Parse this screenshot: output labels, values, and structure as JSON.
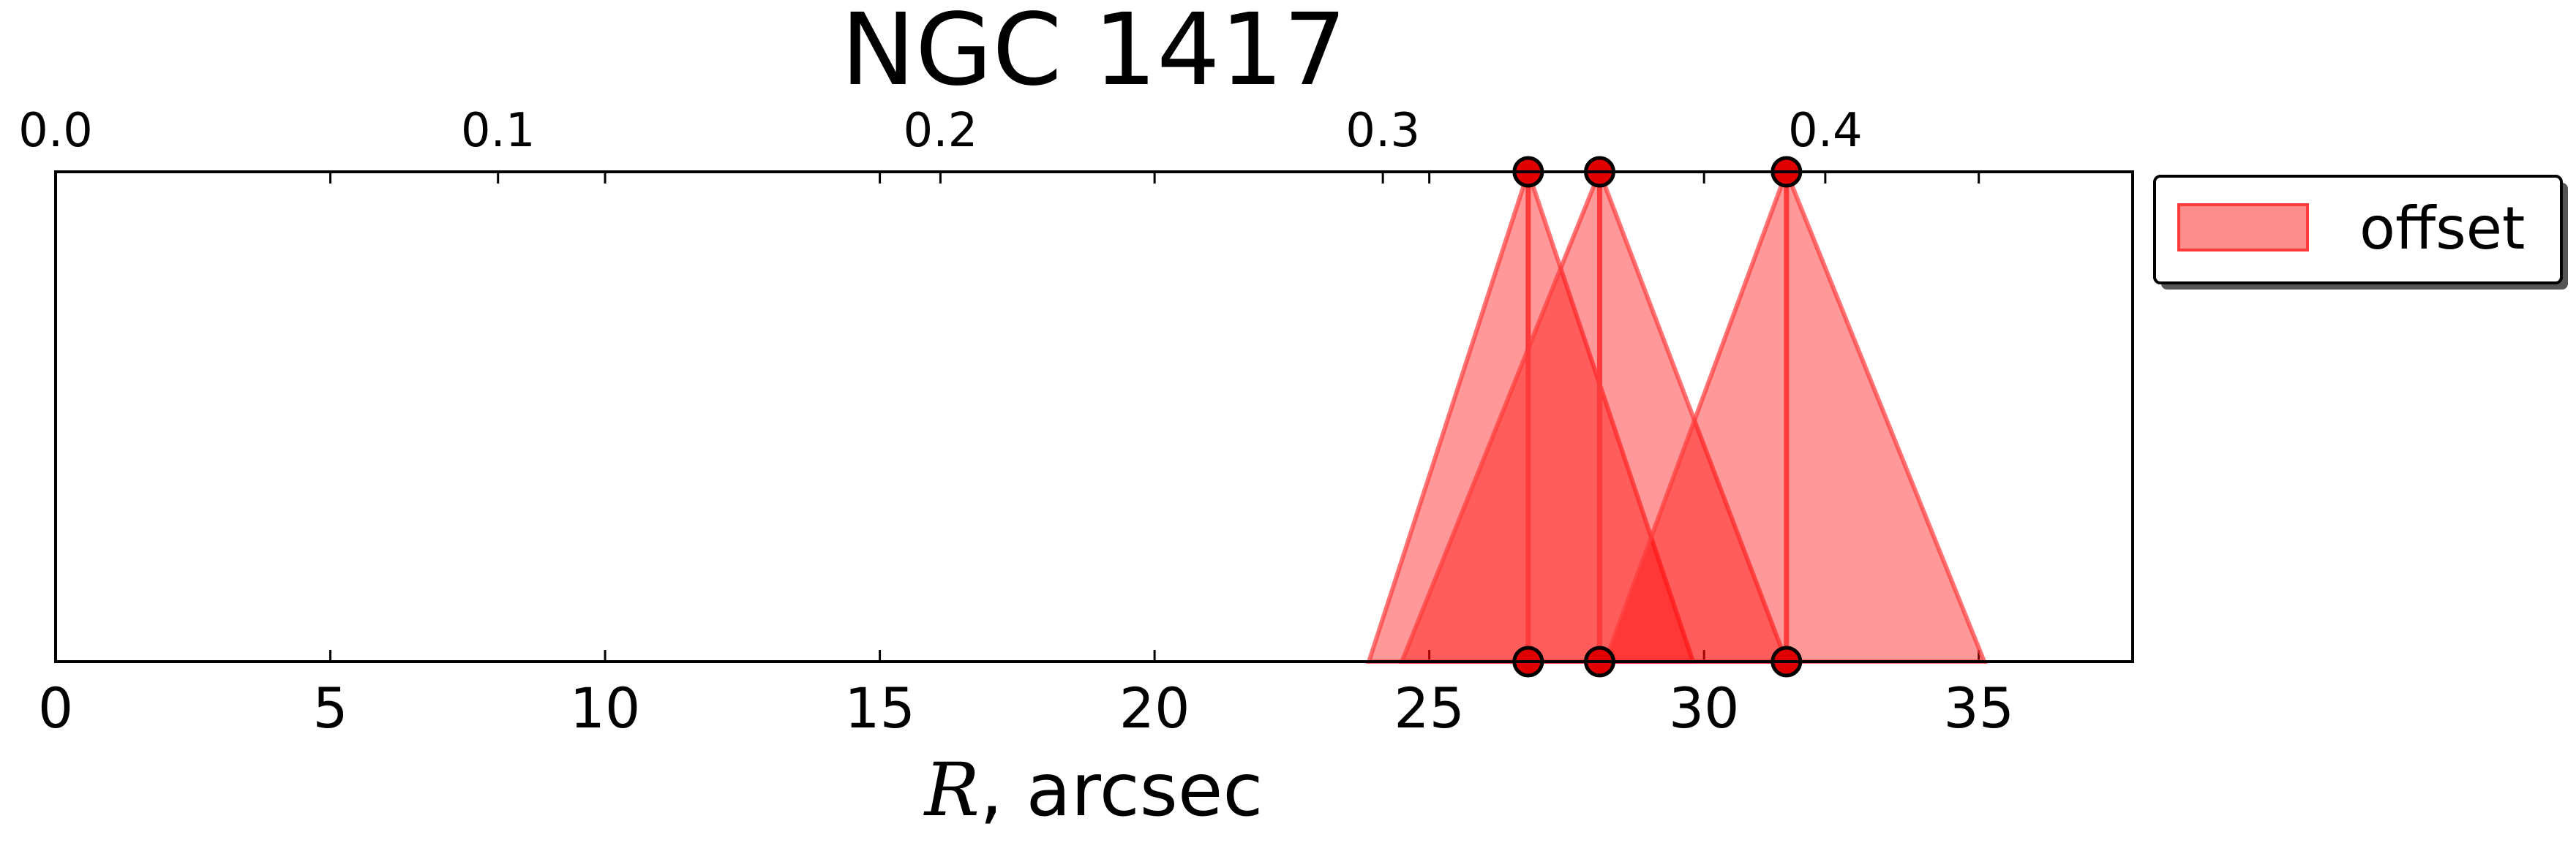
{
  "chart_data": {
    "type": "area",
    "title": "NGC 1417",
    "xlabel_var": "R",
    "xlabel_rest": ", arcsec",
    "xlim": [
      0,
      37.8
    ],
    "xticks": [
      0,
      5,
      10,
      15,
      20,
      25,
      30,
      35
    ],
    "xticklabels": [
      "0",
      "5",
      "10",
      "15",
      "20",
      "25",
      "30",
      "35"
    ],
    "top_axis": {
      "ticks": [
        0.0,
        0.1,
        0.2,
        0.3,
        0.4
      ],
      "ticklabels": [
        "0.0",
        "0.1",
        "0.2",
        "0.3",
        "0.4"
      ],
      "scale_per_arcsec": 0.01242
    },
    "legend": {
      "placement": "outside-upper-right",
      "entries": [
        "offset"
      ]
    },
    "fill_color": "#ff0000",
    "fill_opacity": 0.4,
    "edge_color": "#ff3a3a",
    "marker_fill": "#e00000",
    "series": [
      {
        "name": "offset",
        "center": 26.8,
        "left": 23.9,
        "right": 29.8
      },
      {
        "name": "offset",
        "center": 28.1,
        "left": 24.5,
        "right": 31.5
      },
      {
        "name": "offset",
        "center": 31.5,
        "left": 28.2,
        "right": 35.1
      }
    ]
  }
}
